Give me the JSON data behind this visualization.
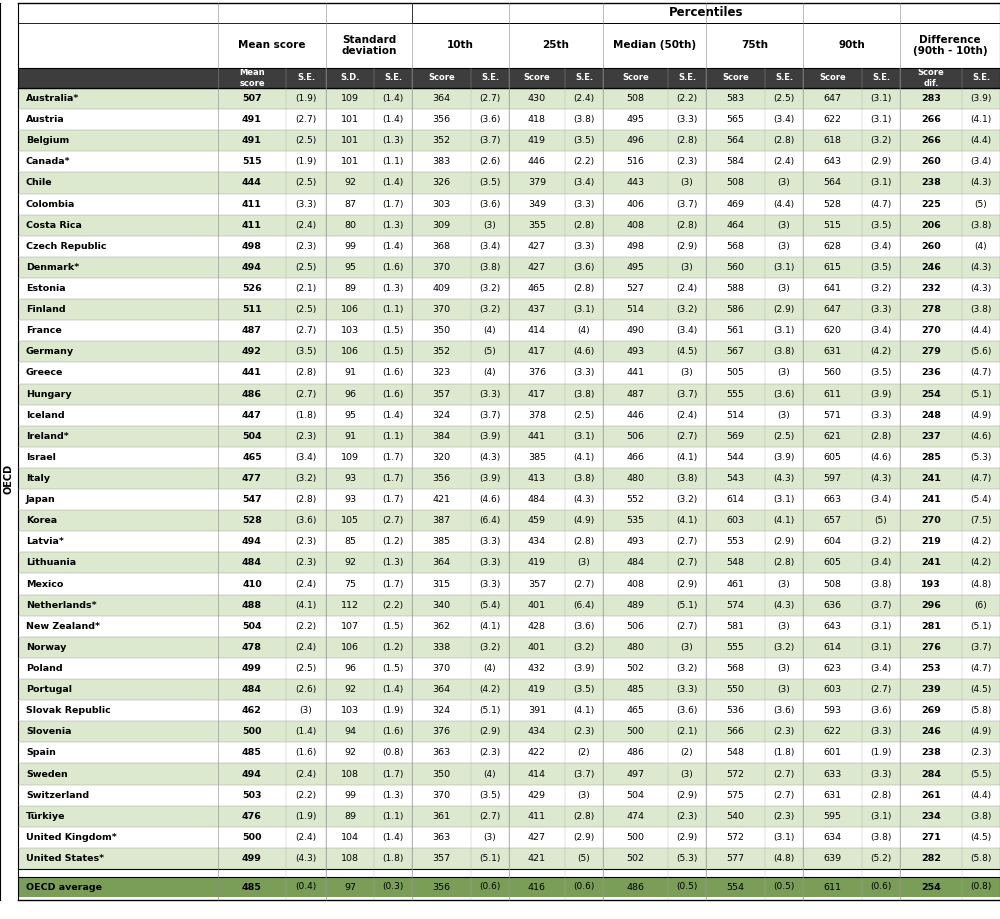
{
  "rows": [
    [
      "Australia*",
      507,
      1.9,
      109,
      1.4,
      364,
      2.7,
      430,
      2.4,
      508,
      2.2,
      583,
      2.5,
      647,
      3.1,
      283,
      3.9
    ],
    [
      "Austria",
      491,
      2.7,
      101,
      1.4,
      356,
      3.6,
      418,
      3.8,
      495,
      3.3,
      565,
      3.4,
      622,
      3.1,
      266,
      4.1
    ],
    [
      "Belgium",
      491,
      2.5,
      101,
      1.3,
      352,
      3.7,
      419,
      3.5,
      496,
      2.8,
      564,
      2.8,
      618,
      3.2,
      266,
      4.4
    ],
    [
      "Canada*",
      515,
      1.9,
      101,
      1.1,
      383,
      2.6,
      446,
      2.2,
      516,
      2.3,
      584,
      2.4,
      643,
      2.9,
      260,
      3.4
    ],
    [
      "Chile",
      444,
      2.5,
      92,
      1.4,
      326,
      3.5,
      379,
      3.4,
      443,
      3.0,
      508,
      3.0,
      564,
      3.1,
      238,
      4.3
    ],
    [
      "Colombia",
      411,
      3.3,
      87,
      1.7,
      303,
      3.6,
      349,
      3.3,
      406,
      3.7,
      469,
      4.4,
      528,
      4.7,
      225,
      5.0
    ],
    [
      "Costa Rica",
      411,
      2.4,
      80,
      1.3,
      309,
      3.0,
      355,
      2.8,
      408,
      2.8,
      464,
      3.0,
      515,
      3.5,
      206,
      3.8
    ],
    [
      "Czech Republic",
      498,
      2.3,
      99,
      1.4,
      368,
      3.4,
      427,
      3.3,
      498,
      2.9,
      568,
      3.0,
      628,
      3.4,
      260,
      4.0
    ],
    [
      "Denmark*",
      494,
      2.5,
      95,
      1.6,
      370,
      3.8,
      427,
      3.6,
      495,
      3.0,
      560,
      3.1,
      615,
      3.5,
      246,
      4.3
    ],
    [
      "Estonia",
      526,
      2.1,
      89,
      1.3,
      409,
      3.2,
      465,
      2.8,
      527,
      2.4,
      588,
      3.0,
      641,
      3.2,
      232,
      4.3
    ],
    [
      "Finland",
      511,
      2.5,
      106,
      1.1,
      370,
      3.2,
      437,
      3.1,
      514,
      3.2,
      586,
      2.9,
      647,
      3.3,
      278,
      3.8
    ],
    [
      "France",
      487,
      2.7,
      103,
      1.5,
      350,
      4.0,
      414,
      4.0,
      490,
      3.4,
      561,
      3.1,
      620,
      3.4,
      270,
      4.4
    ],
    [
      "Germany",
      492,
      3.5,
      106,
      1.5,
      352,
      5.0,
      417,
      4.6,
      493,
      4.5,
      567,
      3.8,
      631,
      4.2,
      279,
      5.6
    ],
    [
      "Greece",
      441,
      2.8,
      91,
      1.6,
      323,
      4.0,
      376,
      3.3,
      441,
      3.0,
      505,
      3.0,
      560,
      3.5,
      236,
      4.7
    ],
    [
      "Hungary",
      486,
      2.7,
      96,
      1.6,
      357,
      3.3,
      417,
      3.8,
      487,
      3.7,
      555,
      3.6,
      611,
      3.9,
      254,
      5.1
    ],
    [
      "Iceland",
      447,
      1.8,
      95,
      1.4,
      324,
      3.7,
      378,
      2.5,
      446,
      2.4,
      514,
      3.0,
      571,
      3.3,
      248,
      4.9
    ],
    [
      "Ireland*",
      504,
      2.3,
      91,
      1.1,
      384,
      3.9,
      441,
      3.1,
      506,
      2.7,
      569,
      2.5,
      621,
      2.8,
      237,
      4.6
    ],
    [
      "Israel",
      465,
      3.4,
      109,
      1.7,
      320,
      4.3,
      385,
      4.1,
      466,
      4.1,
      544,
      3.9,
      605,
      4.6,
      285,
      5.3
    ],
    [
      "Italy",
      477,
      3.2,
      93,
      1.7,
      356,
      3.9,
      413,
      3.8,
      480,
      3.8,
      543,
      4.3,
      597,
      4.3,
      241,
      4.7
    ],
    [
      "Japan",
      547,
      2.8,
      93,
      1.7,
      421,
      4.6,
      484,
      4.3,
      552,
      3.2,
      614,
      3.1,
      663,
      3.4,
      241,
      5.4
    ],
    [
      "Korea",
      528,
      3.6,
      105,
      2.7,
      387,
      6.4,
      459,
      4.9,
      535,
      4.1,
      603,
      4.1,
      657,
      5.0,
      270,
      7.5
    ],
    [
      "Latvia*",
      494,
      2.3,
      85,
      1.2,
      385,
      3.3,
      434,
      2.8,
      493,
      2.7,
      553,
      2.9,
      604,
      3.2,
      219,
      4.2
    ],
    [
      "Lithuania",
      484,
      2.3,
      92,
      1.3,
      364,
      3.3,
      419,
      3.0,
      484,
      2.7,
      548,
      2.8,
      605,
      3.4,
      241,
      4.2
    ],
    [
      "Mexico",
      410,
      2.4,
      75,
      1.7,
      315,
      3.3,
      357,
      2.7,
      408,
      2.9,
      461,
      3.0,
      508,
      3.8,
      193,
      4.8
    ],
    [
      "Netherlands*",
      488,
      4.1,
      112,
      2.2,
      340,
      5.4,
      401,
      6.4,
      489,
      5.1,
      574,
      4.3,
      636,
      3.7,
      296,
      6.0
    ],
    [
      "New Zealand*",
      504,
      2.2,
      107,
      1.5,
      362,
      4.1,
      428,
      3.6,
      506,
      2.7,
      581,
      3.0,
      643,
      3.1,
      281,
      5.1
    ],
    [
      "Norway",
      478,
      2.4,
      106,
      1.2,
      338,
      3.2,
      401,
      3.2,
      480,
      3.0,
      555,
      3.2,
      614,
      3.1,
      276,
      3.7
    ],
    [
      "Poland",
      499,
      2.5,
      96,
      1.5,
      370,
      4.0,
      432,
      3.9,
      502,
      3.2,
      568,
      3.0,
      623,
      3.4,
      253,
      4.7
    ],
    [
      "Portugal",
      484,
      2.6,
      92,
      1.4,
      364,
      4.2,
      419,
      3.5,
      485,
      3.3,
      550,
      3.0,
      603,
      2.7,
      239,
      4.5
    ],
    [
      "Slovak Republic",
      462,
      3.0,
      103,
      1.9,
      324,
      5.1,
      391,
      4.1,
      465,
      3.6,
      536,
      3.6,
      593,
      3.6,
      269,
      5.8
    ],
    [
      "Slovenia",
      500,
      1.4,
      94,
      1.6,
      376,
      2.9,
      434,
      2.3,
      500,
      2.1,
      566,
      2.3,
      622,
      3.3,
      246,
      4.9
    ],
    [
      "Spain",
      485,
      1.6,
      92,
      0.8,
      363,
      2.3,
      422,
      2.0,
      486,
      2.0,
      548,
      1.8,
      601,
      1.9,
      238,
      2.3
    ],
    [
      "Sweden",
      494,
      2.4,
      108,
      1.7,
      350,
      4.0,
      414,
      3.7,
      497,
      3.0,
      572,
      2.7,
      633,
      3.3,
      284,
      5.5
    ],
    [
      "Switzerland",
      503,
      2.2,
      99,
      1.3,
      370,
      3.5,
      429,
      3.0,
      504,
      2.9,
      575,
      2.7,
      631,
      2.8,
      261,
      4.4
    ],
    [
      "Türkiye",
      476,
      1.9,
      89,
      1.1,
      361,
      2.7,
      411,
      2.8,
      474,
      2.3,
      540,
      2.3,
      595,
      3.1,
      234,
      3.8
    ],
    [
      "United Kingdom*",
      500,
      2.4,
      104,
      1.4,
      363,
      3.0,
      427,
      2.9,
      500,
      2.9,
      572,
      3.1,
      634,
      3.8,
      271,
      4.5
    ],
    [
      "United States*",
      499,
      4.3,
      108,
      1.8,
      357,
      5.1,
      421,
      5.0,
      502,
      5.3,
      577,
      4.8,
      639,
      5.2,
      282,
      5.8
    ]
  ],
  "oecd_avg": [
    "OECD average",
    485,
    0.4,
    97,
    0.3,
    356,
    0.6,
    416,
    0.6,
    486,
    0.5,
    554,
    0.5,
    611,
    0.6,
    254,
    0.8
  ],
  "color_light_green": "#c8d9b8",
  "color_medium_green": "#6b8c4e",
  "color_dark_header": "#404040",
  "color_white": "#ffffff",
  "color_row_even": "#dce8cf",
  "color_row_odd": "#ffffff",
  "color_border": "#000000",
  "color_oecd_bg": "#7a9e5a"
}
